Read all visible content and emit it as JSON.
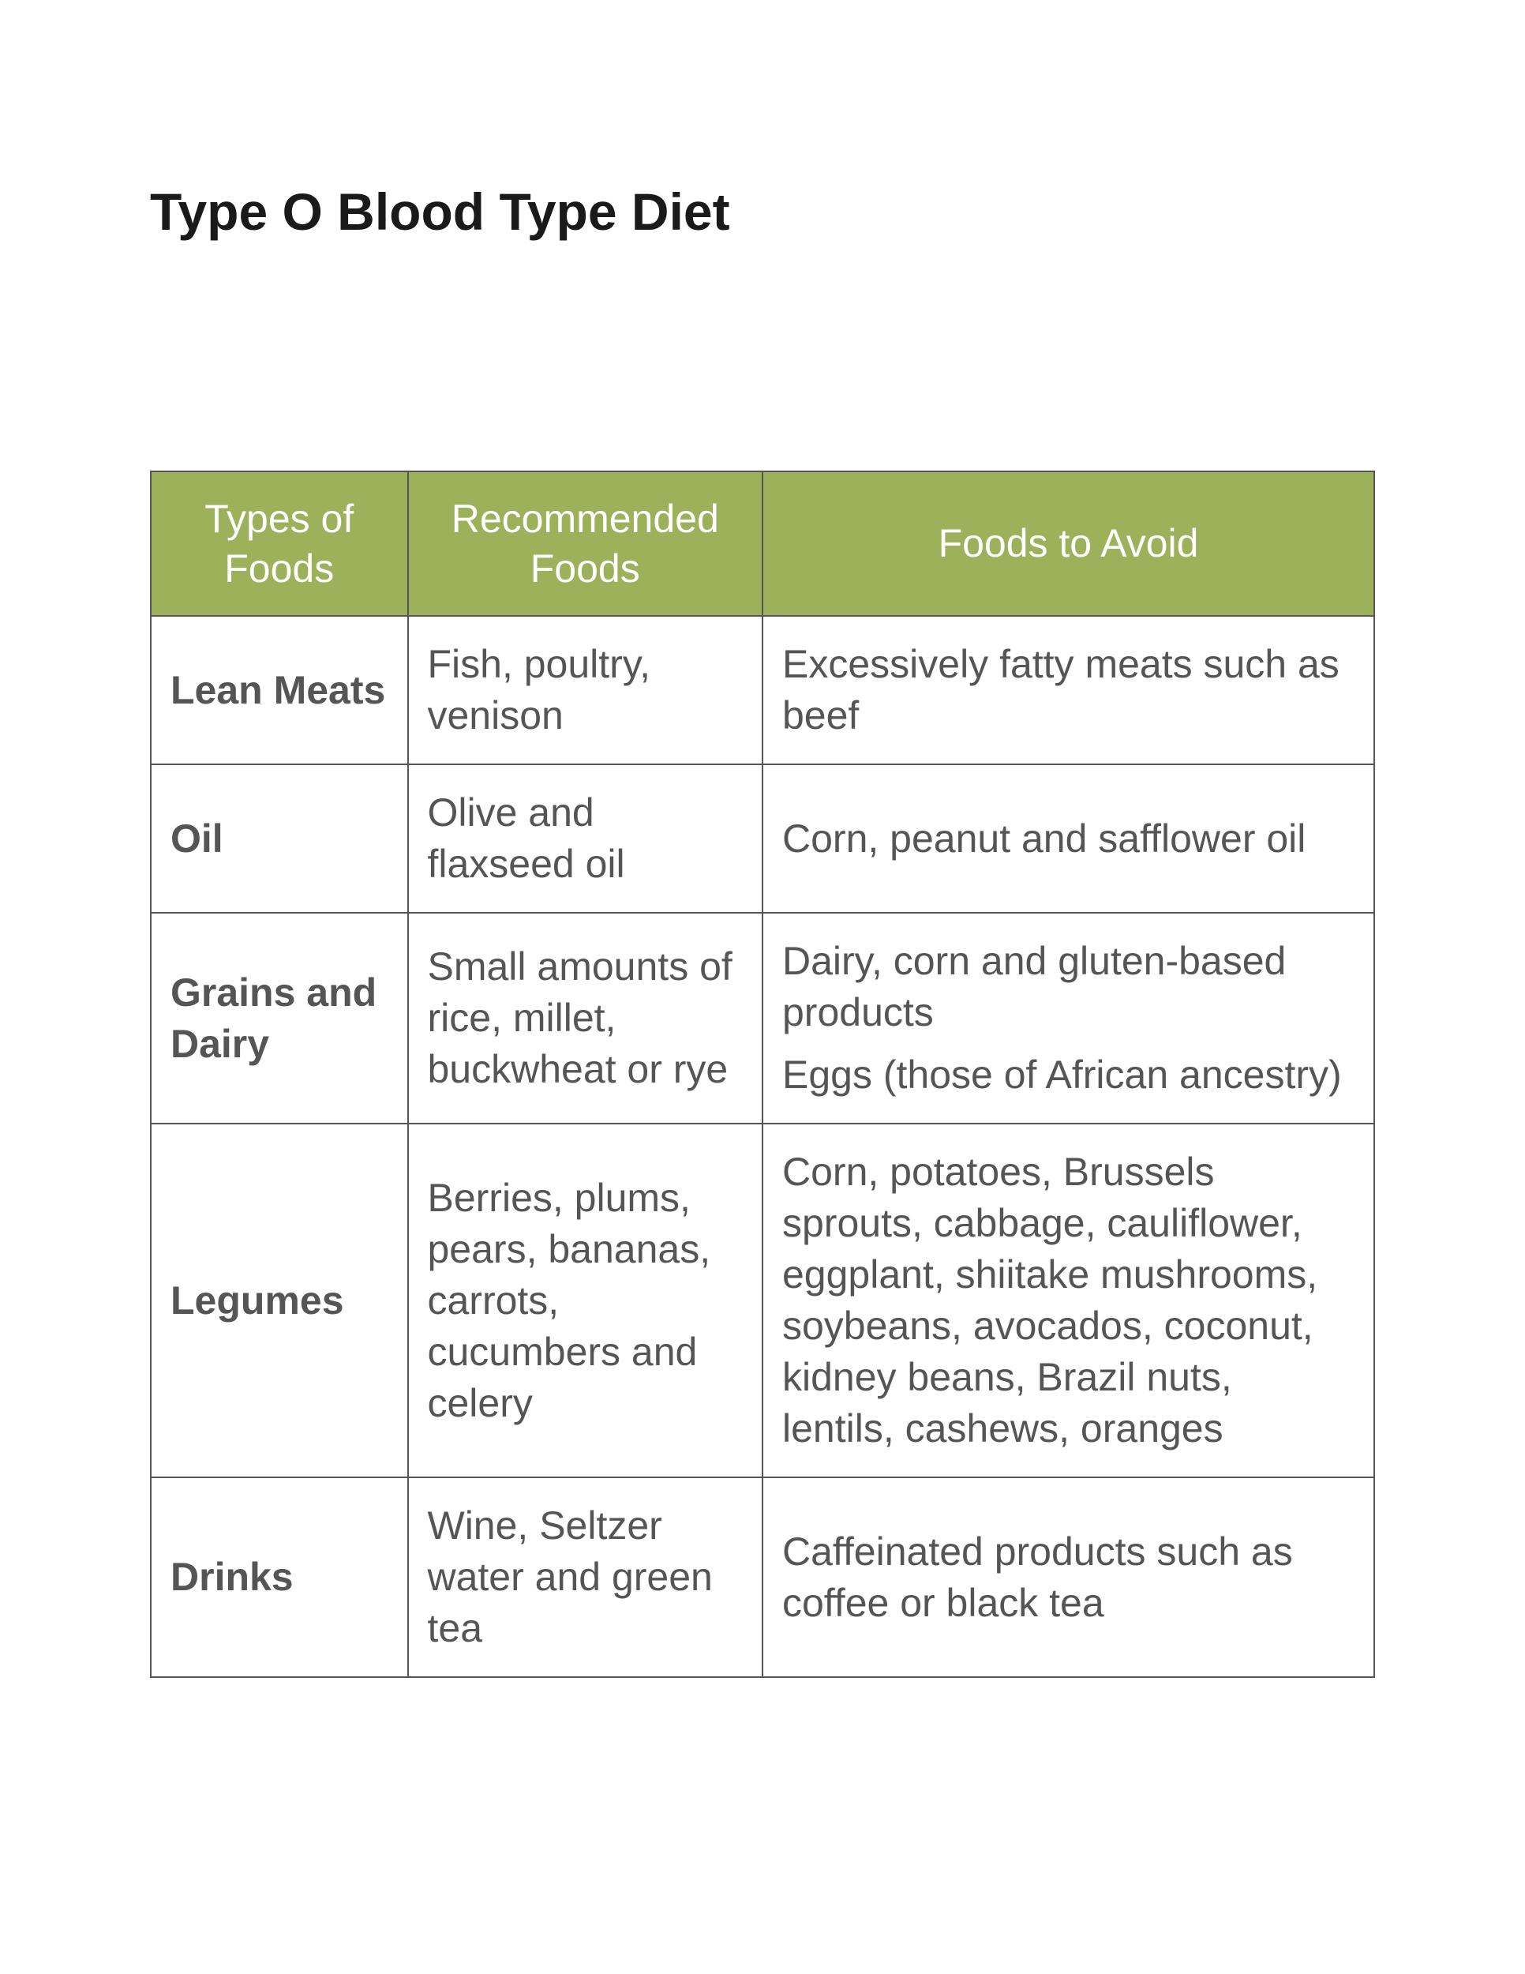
{
  "title": "Type O Blood Type Diet",
  "table": {
    "header_bg": "#9cb15a",
    "header_fg": "#ffffff",
    "border_color": "#555555",
    "cell_fg": "#555555",
    "columns": [
      {
        "label": "Types of Foods",
        "width_pct": 21
      },
      {
        "label": "Recommended Foods",
        "width_pct": 29
      },
      {
        "label": "Foods to Avoid",
        "width_pct": 50
      }
    ],
    "rows": [
      {
        "category": "Lean Meats",
        "recommended": "Fish, poultry, venison",
        "avoid": [
          "Excessively fatty meats such as beef"
        ]
      },
      {
        "category": "Oil",
        "recommended": "Olive and flaxseed oil",
        "avoid": [
          "Corn, peanut and safflower oil"
        ]
      },
      {
        "category": "Grains and Dairy",
        "recommended": "Small amounts of rice, millet, buckwheat or rye",
        "avoid": [
          "Dairy, corn and gluten-based products",
          "Eggs (those of African ancestry)"
        ]
      },
      {
        "category": "Legumes",
        "recommended": "Berries, plums, pears, bananas, carrots, cucumbers and celery",
        "avoid": [
          "Corn, potatoes, Brussels sprouts, cabbage, cauliflower, eggplant, shiitake mushrooms, soybeans, avocados, coconut, kidney beans, Brazil nuts, lentils, cashews, oranges"
        ]
      },
      {
        "category": "Drinks",
        "recommended": "Wine, Seltzer water and green tea",
        "avoid": [
          "Caffeinated products such as coffee or black tea"
        ]
      }
    ]
  }
}
